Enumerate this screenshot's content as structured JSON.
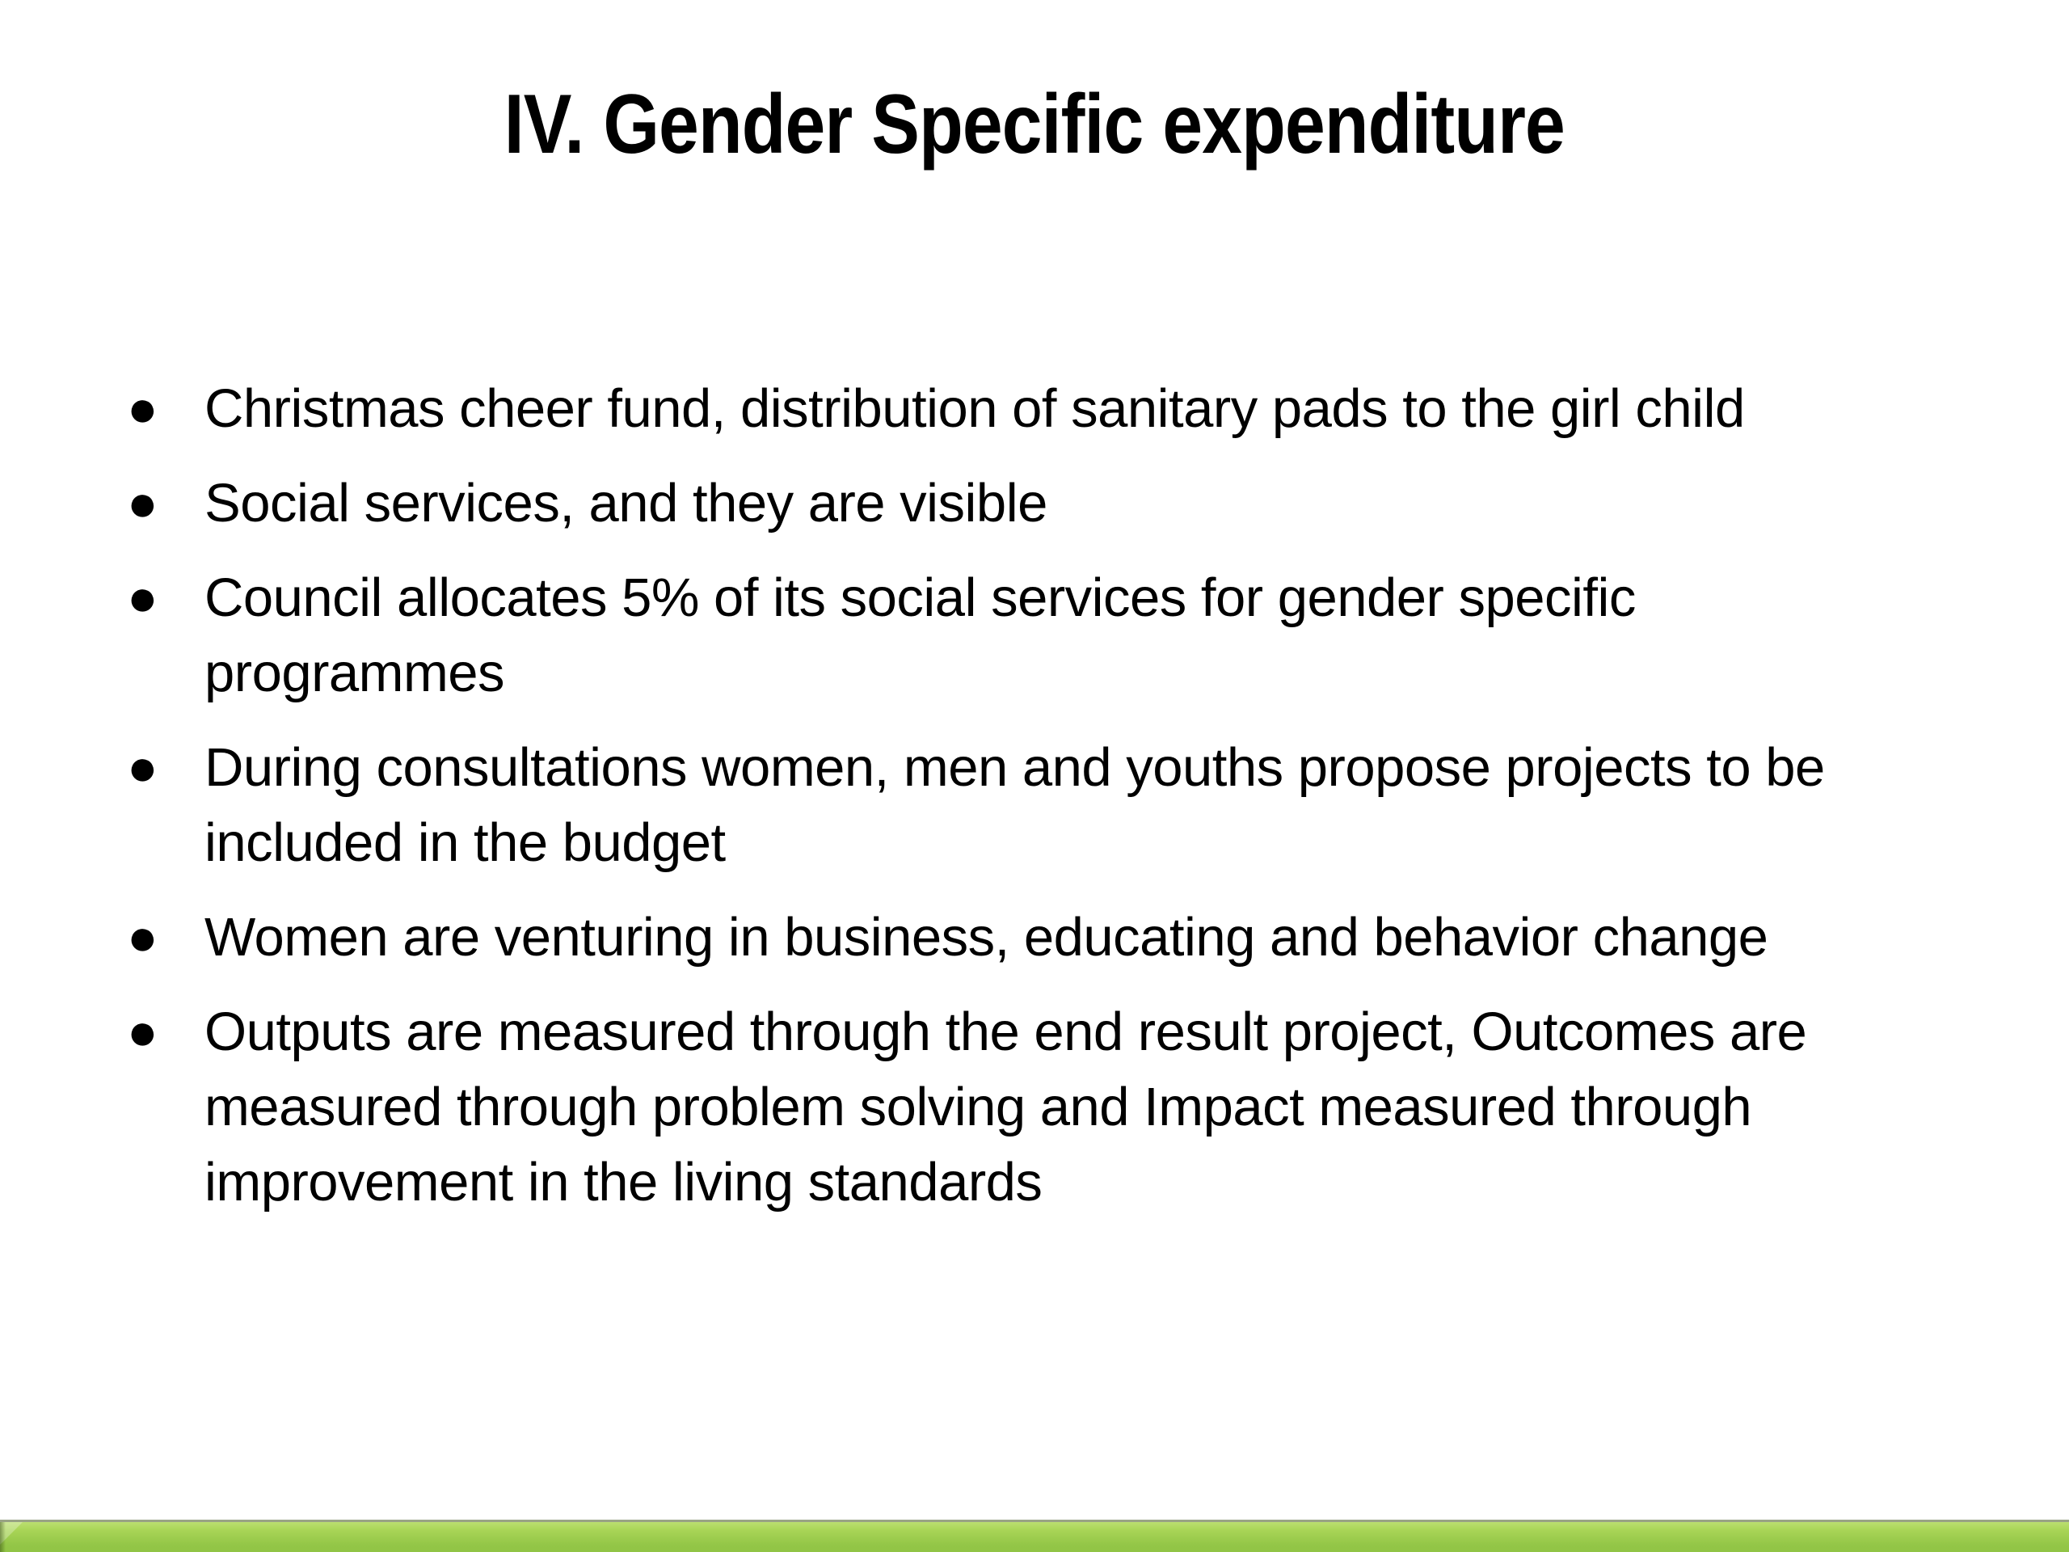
{
  "slide": {
    "title": "IV. Gender Specific expenditure",
    "bullet_marker": "●",
    "bullets": [
      {
        "text": "Christmas cheer fund, distribution of sanitary pads to the girl child"
      },
      {
        "text": "Social services, and they are visible"
      },
      {
        "text": "Council allocates 5% of its social services for gender specific programmes"
      },
      {
        "text": "During consultations women, men and youths propose projects to be included in the budget"
      },
      {
        "text": "Women are venturing in business, educating and behavior change"
      },
      {
        "text": "Outputs are measured through the end result project, Outcomes are measured through problem solving and Impact measured through improvement in the living standards"
      }
    ],
    "footer_bar": {
      "color_highlight": "#b2d965",
      "color_main": "#8cbf43",
      "color_dark_bottom": "#5d862a",
      "color_top_line": "#99a385"
    }
  }
}
